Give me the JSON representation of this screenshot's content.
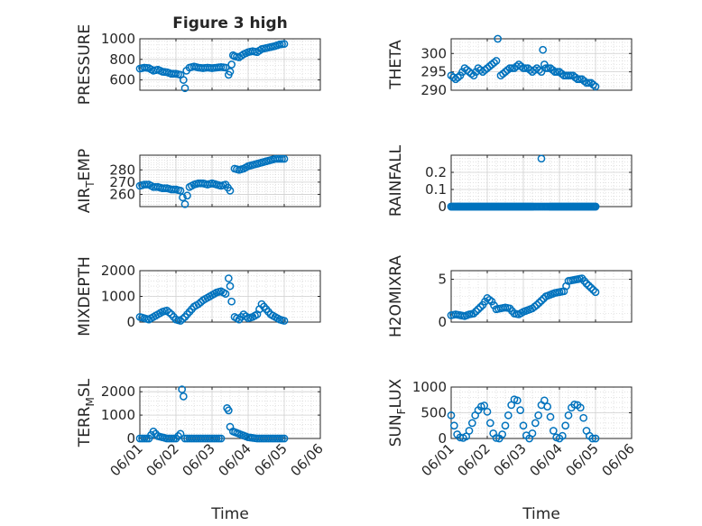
{
  "figure": {
    "title": "Figure 3 high",
    "xlabel": "Time"
  },
  "colors": {
    "marker": "#0072BD",
    "axis": "#262626",
    "grid": "#d0d0d0",
    "background": "#ffffff"
  },
  "chart_data": [
    {
      "type": "scatter",
      "title": "Figure 3 high",
      "ylabel": "PRESSURE",
      "ylim": [
        500,
        1000
      ],
      "yticks": [
        600,
        800,
        1000
      ],
      "ytick_labels": [
        "600",
        "800",
        "1000"
      ],
      "xlim": [
        "06/01",
        "06/06"
      ],
      "xticks": [
        "06/01",
        "06/02",
        "06/03",
        "06/04",
        "06/05",
        "06/06"
      ],
      "x_tick_labels_visible": false,
      "grid": true,
      "series": [
        {
          "x": [
            "06/01 00:00",
            "06/01 03:00",
            "06/01 06:00",
            "06/01 09:00",
            "06/01 12:00",
            "06/01 15:00",
            "06/01 18:00",
            "06/01 21:00",
            "06/02 00:00",
            "06/02 03:00",
            "06/02 05:00",
            "06/02 06:00",
            "06/02 07:00",
            "06/02 09:00",
            "06/02 12:00",
            "06/02 15:00",
            "06/02 18:00",
            "06/02 21:00",
            "06/03 00:00",
            "06/03 03:00",
            "06/03 06:00",
            "06/03 09:00",
            "06/03 11:00",
            "06/03 12:00",
            "06/03 13:00",
            "06/03 14:00",
            "06/03 15:00",
            "06/03 18:00",
            "06/03 21:00",
            "06/04 00:00",
            "06/04 03:00",
            "06/04 06:00",
            "06/04 09:00",
            "06/04 12:00",
            "06/04 15:00",
            "06/04 18:00",
            "06/04 21:00",
            "06/05 00:00"
          ],
          "y": [
            710,
            720,
            715,
            690,
            700,
            680,
            675,
            660,
            660,
            650,
            600,
            520,
            690,
            720,
            730,
            720,
            715,
            720,
            715,
            720,
            725,
            720,
            650,
            680,
            750,
            840,
            830,
            820,
            850,
            870,
            880,
            870,
            900,
            910,
            920,
            930,
            945,
            950
          ]
        }
      ]
    },
    {
      "type": "scatter",
      "ylabel": "THETA",
      "ylim": [
        290,
        304
      ],
      "yticks": [
        290,
        295,
        300
      ],
      "ytick_labels": [
        "290",
        "295",
        "300"
      ],
      "xlim": [
        "06/01",
        "06/06"
      ],
      "xticks": [
        "06/01",
        "06/02",
        "06/03",
        "06/04",
        "06/05",
        "06/06"
      ],
      "x_tick_labels_visible": false,
      "grid": true,
      "series": [
        {
          "x": [
            "06/01 00:00",
            "06/01 03:00",
            "06/01 06:00",
            "06/01 09:00",
            "06/01 12:00",
            "06/01 15:00",
            "06/01 18:00",
            "06/01 21:00",
            "06/02 00:00",
            "06/02 03:00",
            "06/02 06:00",
            "06/02 07:00",
            "06/02 09:00",
            "06/02 12:00",
            "06/02 15:00",
            "06/02 18:00",
            "06/02 21:00",
            "06/03 00:00",
            "06/03 03:00",
            "06/03 06:00",
            "06/03 09:00",
            "06/03 12:00",
            "06/03 13:00",
            "06/03 14:00",
            "06/03 15:00",
            "06/03 18:00",
            "06/03 21:00",
            "06/04 00:00",
            "06/04 03:00",
            "06/04 06:00",
            "06/04 09:00",
            "06/04 12:00",
            "06/04 15:00",
            "06/04 18:00",
            "06/04 21:00",
            "06/05 00:00"
          ],
          "y": [
            294,
            293,
            294,
            296,
            295,
            294,
            296,
            295,
            296,
            297,
            298,
            304,
            294,
            295,
            296,
            296,
            297,
            296,
            296,
            295,
            296,
            295,
            301,
            297,
            296,
            296,
            295,
            295,
            294,
            294,
            294,
            293,
            293,
            292,
            292,
            291
          ]
        }
      ]
    },
    {
      "type": "scatter",
      "ylabel": "AIR_TEMP",
      "ylim": [
        250,
        292
      ],
      "yticks": [
        260,
        270,
        280
      ],
      "ytick_labels": [
        "260",
        "270",
        "280"
      ],
      "xlim": [
        "06/01",
        "06/06"
      ],
      "xticks": [
        "06/01",
        "06/02",
        "06/03",
        "06/04",
        "06/05",
        "06/06"
      ],
      "x_tick_labels_visible": false,
      "grid": true,
      "series": [
        {
          "x": [
            "06/01 00:00",
            "06/01 03:00",
            "06/01 06:00",
            "06/01 09:00",
            "06/01 12:00",
            "06/01 15:00",
            "06/01 18:00",
            "06/01 21:00",
            "06/02 00:00",
            "06/02 03:00",
            "06/02 06:00",
            "06/02 09:00",
            "06/02 12:00",
            "06/02 15:00",
            "06/02 18:00",
            "06/02 21:00",
            "06/03 00:00",
            "06/03 03:00",
            "06/03 06:00",
            "06/03 09:00",
            "06/03 12:00",
            "06/03 15:00",
            "06/03 18:00",
            "06/03 21:00",
            "06/04 00:00",
            "06/04 03:00",
            "06/04 06:00",
            "06/04 09:00",
            "06/04 12:00",
            "06/04 15:00",
            "06/04 18:00",
            "06/04 21:00",
            "06/05 00:00"
          ],
          "y": [
            267,
            268,
            268,
            266,
            266,
            265,
            265,
            264,
            264,
            263,
            252,
            266,
            268,
            269,
            269,
            268,
            269,
            268,
            267,
            268,
            263,
            281,
            280,
            281,
            283,
            284,
            285,
            286,
            287,
            288,
            289,
            289,
            289
          ]
        }
      ]
    },
    {
      "type": "scatter",
      "ylabel": "RAINFALL",
      "ylim": [
        0,
        0.3
      ],
      "yticks": [
        0,
        0.1,
        0.2
      ],
      "ytick_labels": [
        "0",
        "0.1",
        "0.2"
      ],
      "xlim": [
        "06/01",
        "06/06"
      ],
      "xticks": [
        "06/01",
        "06/02",
        "06/03",
        "06/04",
        "06/05",
        "06/06"
      ],
      "x_tick_labels_visible": false,
      "grid": true,
      "series": [
        {
          "x": [
            "06/01 00:00",
            "06/01 06:00",
            "06/01 12:00",
            "06/01 18:00",
            "06/02 00:00",
            "06/02 06:00",
            "06/02 12:00",
            "06/02 18:00",
            "06/03 00:00",
            "06/03 06:00",
            "06/03 12:00",
            "06/03 18:00",
            "06/04 00:00",
            "06/04 06:00",
            "06/04 12:00",
            "06/04 18:00",
            "06/05 00:00"
          ],
          "y": [
            0,
            0,
            0,
            0,
            0,
            0,
            0,
            0,
            0,
            0,
            0.28,
            0,
            0,
            0,
            0,
            0,
            0
          ],
          "dense_zero_range": [
            "06/01 00:00",
            "06/05 00:00"
          ]
        }
      ]
    },
    {
      "type": "scatter",
      "ylabel": "MIXDEPTH",
      "ylim": [
        0,
        2000
      ],
      "yticks": [
        0,
        1000,
        2000
      ],
      "ytick_labels": [
        "0",
        "1000",
        "2000"
      ],
      "xlim": [
        "06/01",
        "06/06"
      ],
      "xticks": [
        "06/01",
        "06/02",
        "06/03",
        "06/04",
        "06/05",
        "06/06"
      ],
      "x_tick_labels_visible": false,
      "grid": true,
      "series": [
        {
          "x": [
            "06/01 00:00",
            "06/01 03:00",
            "06/01 06:00",
            "06/01 09:00",
            "06/01 12:00",
            "06/01 15:00",
            "06/01 18:00",
            "06/01 21:00",
            "06/02 00:00",
            "06/02 03:00",
            "06/02 06:00",
            "06/02 09:00",
            "06/02 12:00",
            "06/02 15:00",
            "06/02 18:00",
            "06/02 21:00",
            "06/03 00:00",
            "06/03 03:00",
            "06/03 06:00",
            "06/03 09:00",
            "06/03 11:00",
            "06/03 12:00",
            "06/03 13:00",
            "06/03 15:00",
            "06/03 18:00",
            "06/03 21:00",
            "06/04 00:00",
            "06/04 03:00",
            "06/04 06:00",
            "06/04 09:00",
            "06/04 12:00",
            "06/04 15:00",
            "06/04 18:00",
            "06/04 21:00",
            "06/05 00:00"
          ],
          "y": [
            200,
            150,
            100,
            200,
            300,
            400,
            450,
            300,
            100,
            50,
            200,
            400,
            600,
            700,
            850,
            950,
            1050,
            1150,
            1200,
            1100,
            1700,
            1400,
            800,
            200,
            100,
            300,
            150,
            200,
            300,
            700,
            500,
            300,
            200,
            100,
            50
          ]
        }
      ]
    },
    {
      "type": "scatter",
      "ylabel": "H2OMIXRA",
      "ylim": [
        0,
        6
      ],
      "yticks": [
        0,
        5
      ],
      "ytick_labels": [
        "0",
        "5"
      ],
      "xlim": [
        "06/01",
        "06/06"
      ],
      "xticks": [
        "06/01",
        "06/02",
        "06/03",
        "06/04",
        "06/05",
        "06/06"
      ],
      "x_tick_labels_visible": false,
      "grid": true,
      "series": [
        {
          "x": [
            "06/01 00:00",
            "06/01 03:00",
            "06/01 06:00",
            "06/01 09:00",
            "06/01 12:00",
            "06/01 15:00",
            "06/01 18:00",
            "06/01 21:00",
            "06/02 00:00",
            "06/02 03:00",
            "06/02 06:00",
            "06/02 09:00",
            "06/02 12:00",
            "06/02 15:00",
            "06/02 18:00",
            "06/02 21:00",
            "06/03 00:00",
            "06/03 03:00",
            "06/03 06:00",
            "06/03 09:00",
            "06/03 12:00",
            "06/03 15:00",
            "06/03 18:00",
            "06/03 21:00",
            "06/04 00:00",
            "06/04 03:00",
            "06/04 06:00",
            "06/04 09:00",
            "06/04 12:00",
            "06/04 15:00",
            "06/04 18:00",
            "06/04 21:00",
            "06/05 00:00"
          ],
          "y": [
            0.8,
            0.9,
            0.8,
            0.7,
            0.9,
            1.0,
            1.5,
            2.0,
            2.8,
            2.4,
            1.5,
            1.6,
            1.7,
            1.6,
            1.0,
            0.9,
            1.2,
            1.4,
            1.6,
            2.0,
            2.5,
            3.0,
            3.2,
            3.4,
            3.5,
            3.6,
            4.8,
            4.9,
            5.0,
            5.1,
            4.5,
            4.0,
            3.5
          ]
        }
      ]
    },
    {
      "type": "scatter",
      "ylabel": "TERR_MSL",
      "ylim": [
        0,
        2200
      ],
      "yticks": [
        0,
        1000,
        2000
      ],
      "ytick_labels": [
        "0",
        "1000",
        "2000"
      ],
      "xlim": [
        "06/01",
        "06/06"
      ],
      "xticks": [
        "06/01",
        "06/02",
        "06/03",
        "06/04",
        "06/05",
        "06/06"
      ],
      "x_tick_labels": [
        "06/01",
        "06/02",
        "06/03",
        "06/04",
        "06/05",
        "06/06"
      ],
      "x_tick_labels_visible": true,
      "xlabel": "Time",
      "grid": true,
      "series": [
        {
          "x": [
            "06/01 00:00",
            "06/01 06:00",
            "06/01 09:00",
            "06/01 12:00",
            "06/01 18:00",
            "06/02 00:00",
            "06/02 03:00",
            "06/02 04:00",
            "06/02 05:00",
            "06/02 06:00",
            "06/02 12:00",
            "06/02 18:00",
            "06/03 00:00",
            "06/03 06:00",
            "06/03 10:00",
            "06/03 11:00",
            "06/03 12:00",
            "06/03 14:00",
            "06/03 18:00",
            "06/04 00:00",
            "06/04 06:00",
            "06/04 12:00",
            "06/04 18:00",
            "06/05 00:00"
          ],
          "y": [
            0,
            0,
            300,
            100,
            0,
            0,
            200,
            2100,
            1800,
            0,
            0,
            0,
            0,
            0,
            1300,
            1200,
            500,
            300,
            200,
            50,
            0,
            0,
            0,
            0
          ]
        }
      ]
    },
    {
      "type": "scatter",
      "ylabel": "SUN_FLUX",
      "ylim": [
        0,
        1000
      ],
      "yticks": [
        0,
        500,
        1000
      ],
      "ytick_labels": [
        "0",
        "500",
        "1000"
      ],
      "xlim": [
        "06/01",
        "06/06"
      ],
      "xticks": [
        "06/01",
        "06/02",
        "06/03",
        "06/04",
        "06/05",
        "06/06"
      ],
      "x_tick_labels": [
        "06/01",
        "06/02",
        "06/03",
        "06/04",
        "06/05",
        "06/06"
      ],
      "x_tick_labels_visible": true,
      "xlabel": "Time",
      "grid": true,
      "series": [
        {
          "x": [
            "06/01 00:00",
            "06/01 02:00",
            "06/01 04:00",
            "06/01 06:00",
            "06/01 08:00",
            "06/01 10:00",
            "06/01 12:00",
            "06/01 14:00",
            "06/01 16:00",
            "06/01 18:00",
            "06/01 20:00",
            "06/01 22:00",
            "06/02 00:00",
            "06/02 02:00",
            "06/02 04:00",
            "06/02 06:00",
            "06/02 08:00",
            "06/02 10:00",
            "06/02 12:00",
            "06/02 14:00",
            "06/02 16:00",
            "06/02 18:00",
            "06/02 20:00",
            "06/02 22:00",
            "06/03 00:00",
            "06/03 02:00",
            "06/03 04:00",
            "06/03 06:00",
            "06/03 08:00",
            "06/03 10:00",
            "06/03 12:00",
            "06/03 14:00",
            "06/03 16:00",
            "06/03 18:00",
            "06/03 20:00",
            "06/03 22:00",
            "06/04 00:00",
            "06/04 02:00",
            "06/04 04:00",
            "06/04 06:00",
            "06/04 08:00",
            "06/04 10:00",
            "06/04 12:00",
            "06/04 14:00",
            "06/04 16:00",
            "06/04 18:00",
            "06/04 20:00",
            "06/04 22:00",
            "06/05 00:00"
          ],
          "y": [
            450,
            250,
            80,
            20,
            10,
            40,
            150,
            300,
            450,
            550,
            620,
            640,
            520,
            300,
            100,
            10,
            0,
            80,
            250,
            450,
            650,
            760,
            740,
            550,
            250,
            60,
            0,
            100,
            300,
            450,
            650,
            740,
            620,
            420,
            150,
            20,
            0,
            50,
            250,
            450,
            600,
            660,
            650,
            600,
            400,
            150,
            50,
            0,
            0
          ]
        }
      ]
    }
  ]
}
